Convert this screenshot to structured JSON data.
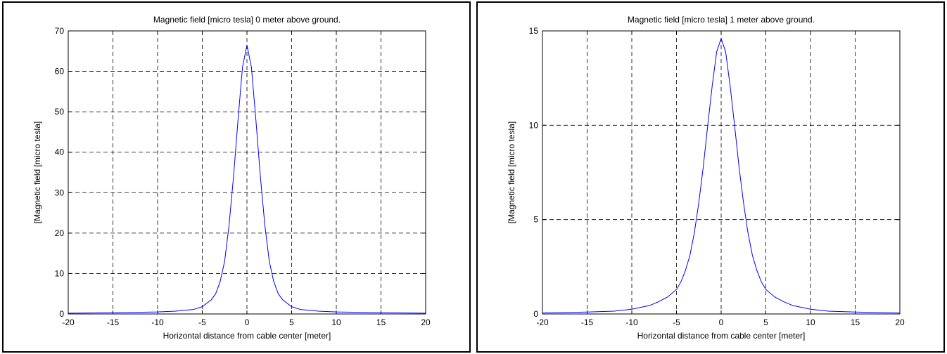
{
  "chart_data": [
    {
      "type": "line",
      "title": "Magnetic field [micro tesla] 0 meter above ground.",
      "xlabel": "Horizontal distance from cable center [meter]",
      "ylabel": "[Magnetic field [micro tesla]",
      "xlim": [
        -20,
        20
      ],
      "ylim": [
        0,
        70
      ],
      "xticks": [
        -20,
        -15,
        -10,
        -5,
        0,
        5,
        10,
        15,
        20
      ],
      "yticks": [
        0,
        10,
        20,
        30,
        40,
        50,
        60,
        70
      ],
      "grid": true,
      "line_color": "#0000ff",
      "series": [
        {
          "x": [
            -20,
            -15,
            -10,
            -8,
            -6,
            -5,
            -4,
            -3.5,
            -3,
            -2.5,
            -2,
            -1.5,
            -1,
            -0.5,
            0,
            0.5,
            1,
            1.5,
            2,
            2.5,
            3,
            3.5,
            4,
            5,
            6,
            8,
            10,
            15,
            20
          ],
          "y": [
            0.2,
            0.3,
            0.5,
            0.7,
            1.1,
            1.8,
            3.5,
            5,
            8,
            13,
            22,
            34,
            48,
            61,
            66.5,
            61,
            48,
            34,
            22,
            13,
            8,
            5,
            3.5,
            1.8,
            1.1,
            0.7,
            0.5,
            0.3,
            0.2
          ]
        }
      ]
    },
    {
      "type": "line",
      "title": "Magnetic field [micro tesla] 1 meter above ground.",
      "xlabel": "Horizontal distance from cable center [meter]",
      "ylabel": "[Magnetic field [micro tesla]",
      "xlim": [
        -20,
        20
      ],
      "ylim": [
        0,
        15
      ],
      "xticks": [
        -20,
        -15,
        -10,
        -5,
        0,
        5,
        10,
        15,
        20
      ],
      "yticks": [
        0,
        5,
        10,
        15
      ],
      "grid": true,
      "line_color": "#0000ff",
      "series": [
        {
          "x": [
            -20,
            -15,
            -12,
            -10,
            -8,
            -7,
            -6,
            -5,
            -4.5,
            -4,
            -3.5,
            -3,
            -2.5,
            -2,
            -1.5,
            -1,
            -0.5,
            0,
            0.5,
            1,
            1.5,
            2,
            2.5,
            3,
            3.5,
            4,
            4.5,
            5,
            6,
            7,
            8,
            10,
            12,
            15,
            20
          ],
          "y": [
            0.05,
            0.1,
            0.15,
            0.25,
            0.45,
            0.65,
            0.9,
            1.3,
            1.7,
            2.3,
            3.1,
            4.3,
            5.9,
            7.8,
            10,
            12.1,
            13.9,
            14.6,
            13.9,
            12.1,
            10,
            7.8,
            5.9,
            4.3,
            3.1,
            2.3,
            1.7,
            1.3,
            0.9,
            0.65,
            0.45,
            0.25,
            0.15,
            0.1,
            0.05
          ]
        }
      ]
    }
  ]
}
